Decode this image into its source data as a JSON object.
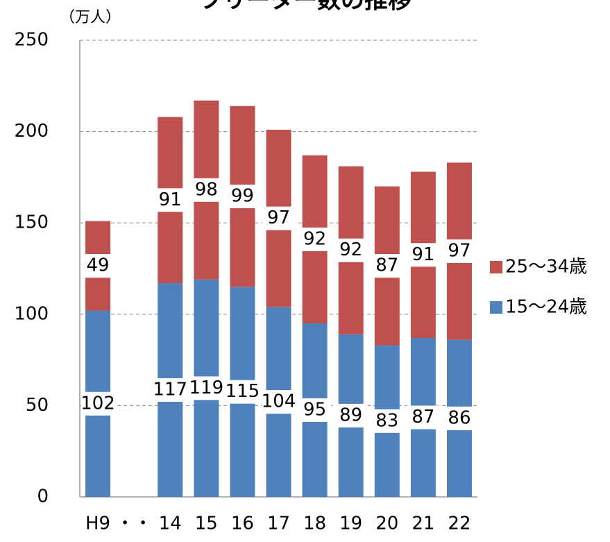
{
  "chart_data": {
    "type": "stacked_bar",
    "title": "フリーター数の推移",
    "y_unit": "（万人）",
    "categories": [
      "H9",
      "・・",
      "14",
      "15",
      "16",
      "17",
      "18",
      "19",
      "20",
      "21",
      "22"
    ],
    "series": [
      {
        "name": "15〜24歳",
        "color": "#4f81bd",
        "values": [
          102,
          null,
          117,
          119,
          115,
          104,
          95,
          89,
          83,
          87,
          86
        ]
      },
      {
        "name": "25〜34歳",
        "color": "#c0504d",
        "values": [
          49,
          null,
          91,
          98,
          99,
          97,
          92,
          92,
          87,
          91,
          97
        ]
      }
    ],
    "ylim": [
      0,
      250
    ],
    "yticks": [
      0,
      50,
      100,
      150,
      200,
      250
    ],
    "grid": true,
    "legend": "right"
  }
}
